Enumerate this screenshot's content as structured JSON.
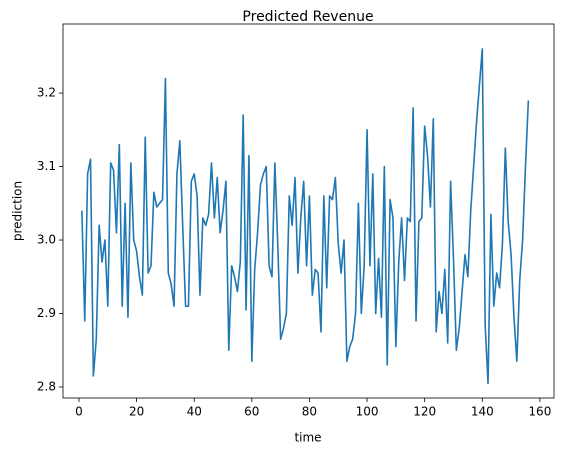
{
  "chart_data": {
    "type": "line",
    "title": "Predicted Revenue",
    "xlabel": "time",
    "ylabel": "prediction",
    "color": "#1f77b4",
    "x": [
      1,
      2,
      3,
      4,
      5,
      6,
      7,
      8,
      9,
      10,
      11,
      12,
      13,
      14,
      15,
      16,
      17,
      18,
      19,
      20,
      21,
      22,
      23,
      24,
      25,
      26,
      27,
      28,
      29,
      30,
      31,
      32,
      33,
      34,
      35,
      36,
      37,
      38,
      39,
      40,
      41,
      42,
      43,
      44,
      45,
      46,
      47,
      48,
      49,
      50,
      51,
      52,
      53,
      54,
      55,
      56,
      57,
      58,
      59,
      60,
      61,
      62,
      63,
      64,
      65,
      66,
      67,
      68,
      69,
      70,
      71,
      72,
      73,
      74,
      75,
      76,
      77,
      78,
      79,
      80,
      81,
      82,
      83,
      84,
      85,
      86,
      87,
      88,
      89,
      90,
      91,
      92,
      93,
      94,
      95,
      96,
      97,
      98,
      99,
      100,
      101,
      102,
      103,
      104,
      105,
      106,
      107,
      108,
      109,
      110,
      111,
      112,
      113,
      114,
      115,
      116,
      117,
      118,
      119,
      120,
      121,
      122,
      123,
      124,
      125,
      126,
      127,
      128,
      129,
      130,
      131,
      132,
      133,
      134,
      135,
      136,
      137,
      138,
      139,
      140,
      141,
      142,
      143,
      144,
      145,
      146,
      147,
      148,
      149,
      150,
      151,
      152,
      153,
      154,
      155,
      156
    ],
    "values": [
      3.04,
      2.89,
      3.09,
      3.11,
      2.815,
      2.865,
      3.02,
      2.97,
      3.0,
      2.91,
      3.105,
      3.095,
      3.01,
      3.13,
      2.91,
      3.05,
      2.895,
      3.105,
      3.0,
      2.985,
      2.95,
      2.925,
      3.14,
      2.955,
      2.965,
      3.065,
      3.045,
      3.05,
      3.055,
      3.22,
      2.955,
      2.94,
      2.91,
      3.09,
      3.135,
      3.02,
      2.91,
      2.91,
      3.08,
      3.09,
      3.06,
      2.925,
      3.03,
      3.02,
      3.035,
      3.105,
      3.03,
      3.085,
      3.01,
      3.04,
      3.08,
      2.85,
      2.965,
      2.95,
      2.93,
      2.97,
      3.17,
      2.905,
      3.115,
      2.835,
      2.96,
      3.01,
      3.075,
      3.09,
      3.1,
      2.965,
      2.95,
      3.105,
      2.995,
      2.865,
      2.88,
      2.9,
      3.06,
      3.02,
      3.085,
      2.955,
      3.03,
      3.08,
      2.965,
      3.06,
      2.925,
      2.96,
      2.955,
      2.875,
      3.06,
      2.935,
      3.06,
      3.055,
      3.085,
      2.995,
      2.955,
      3.0,
      2.835,
      2.855,
      2.865,
      2.9,
      3.05,
      2.9,
      2.965,
      3.15,
      2.965,
      3.09,
      2.9,
      2.975,
      2.895,
      3.1,
      2.83,
      3.055,
      3.03,
      2.855,
      2.97,
      3.03,
      2.945,
      3.03,
      3.025,
      3.18,
      2.89,
      3.025,
      3.03,
      3.155,
      3.115,
      3.045,
      3.165,
      2.875,
      2.93,
      2.9,
      2.96,
      2.86,
      3.08,
      2.975,
      2.85,
      2.88,
      2.93,
      2.98,
      2.95,
      3.04,
      3.1,
      3.16,
      3.21,
      3.26,
      2.885,
      2.805,
      3.035,
      2.91,
      2.955,
      2.935,
      2.995,
      3.125,
      3.025,
      2.98,
      2.895,
      2.835,
      2.945,
      3.0,
      3.1,
      3.19
    ],
    "xlim": [
      -5.55,
      164.9
    ],
    "ylim": [
      2.785,
      3.294
    ],
    "xticks": [
      0,
      20,
      40,
      60,
      80,
      100,
      120,
      140,
      160
    ],
    "yticks": [
      2.8,
      2.9,
      {
        "value": 3,
        "label": "3.0"
      },
      3.1,
      3.2
    ]
  }
}
